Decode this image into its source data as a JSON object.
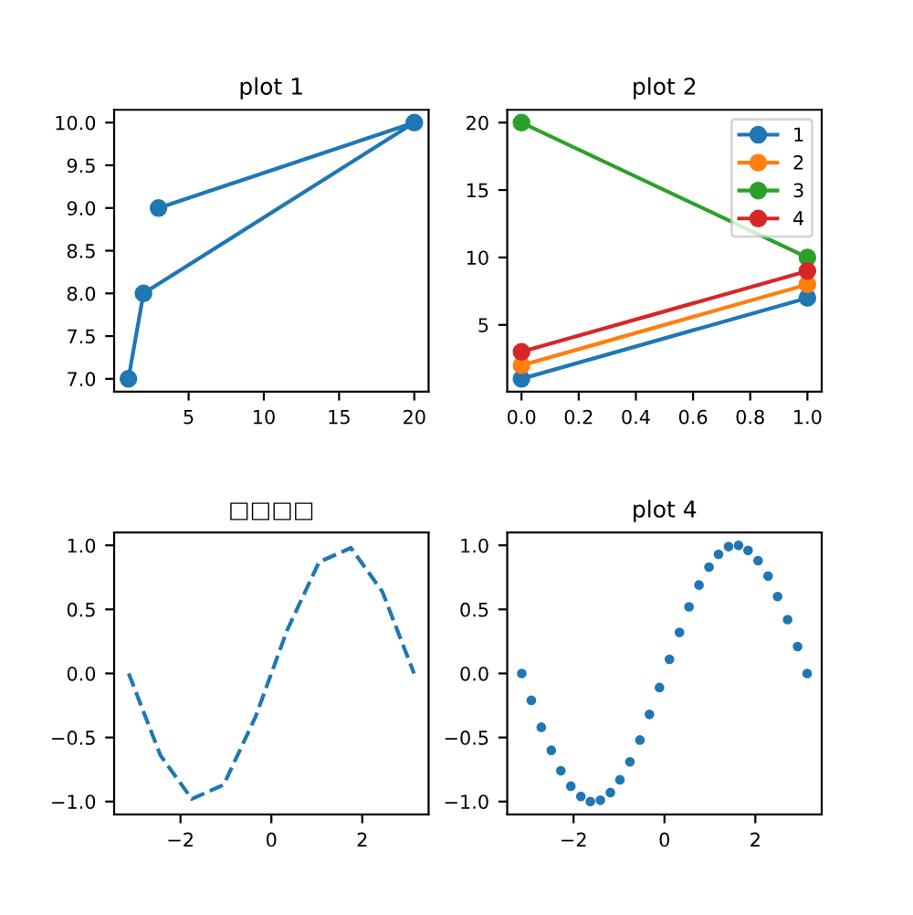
{
  "chart_data": [
    {
      "type": "line",
      "title": "plot 1",
      "x": [
        1,
        2,
        20,
        3
      ],
      "series": [
        {
          "color": "#1f77b4",
          "values": [
            7,
            8,
            10,
            9
          ]
        }
      ],
      "marker": "circle",
      "line_style": "solid",
      "xlim": [
        0.05,
        20.95
      ],
      "xticks": [
        5,
        10,
        15,
        20
      ],
      "ylim": [
        6.85,
        10.15
      ],
      "yticks": [
        {
          "value": 7,
          "label": "7.0"
        },
        7.5,
        {
          "value": 8,
          "label": "8.0"
        },
        8.5,
        {
          "value": 9,
          "label": "9.0"
        },
        9.5,
        {
          "value": 10,
          "label": "10.0"
        }
      ]
    },
    {
      "type": "line",
      "title": "plot 2",
      "x": [
        0,
        1
      ],
      "series": [
        {
          "name": "1",
          "color": "#1f77b4",
          "values": [
            1,
            7
          ]
        },
        {
          "name": "2",
          "color": "#ff7f0e",
          "values": [
            2,
            8
          ]
        },
        {
          "name": "3",
          "color": "#2ca02c",
          "values": [
            20,
            10
          ]
        },
        {
          "name": "4",
          "color": "#d62728",
          "values": [
            3,
            9
          ]
        }
      ],
      "marker": "circle",
      "line_style": "solid",
      "legend": "top right",
      "xlim": [
        -0.05,
        1.05
      ],
      "xticks": [
        {
          "value": 0,
          "label": "0.0"
        },
        0.2,
        0.4,
        0.6,
        0.8,
        {
          "value": 1,
          "label": "1.0"
        }
      ],
      "ylim": [
        0.05,
        20.95
      ],
      "yticks": [
        5,
        10,
        15,
        20
      ]
    },
    {
      "type": "line",
      "title": "□□□□",
      "x": [
        -3.14,
        -2.44,
        -1.75,
        -1.05,
        -0.35,
        0.35,
        1.05,
        1.75,
        2.44,
        3.14
      ],
      "series": [
        {
          "color": "#1f77b4",
          "values": [
            0.0,
            -0.64,
            -0.98,
            -0.87,
            -0.34,
            0.34,
            0.87,
            0.98,
            0.64,
            0.0
          ]
        }
      ],
      "line_style": "dashed",
      "xlim": [
        -3.46,
        3.46
      ],
      "xticks": [
        {
          "value": -2,
          "label": "−2"
        },
        0,
        2
      ],
      "ylim": [
        -1.1,
        1.1
      ],
      "yticks": [
        {
          "value": -1,
          "label": "−1.0"
        },
        {
          "value": -0.5,
          "label": "−0.5"
        },
        {
          "value": 0,
          "label": "0.0"
        },
        0.5,
        {
          "value": 1,
          "label": "1.0"
        }
      ]
    },
    {
      "type": "scatter",
      "title": "plot 4",
      "x": [
        -3.14,
        -2.93,
        -2.71,
        -2.49,
        -2.28,
        -2.06,
        -1.84,
        -1.63,
        -1.41,
        -1.19,
        -0.98,
        -0.76,
        -0.54,
        -0.33,
        -0.11,
        0.11,
        0.33,
        0.54,
        0.76,
        0.98,
        1.19,
        1.41,
        1.63,
        1.84,
        2.06,
        2.28,
        2.49,
        2.71,
        2.93,
        3.14
      ],
      "series": [
        {
          "color": "#1f77b4",
          "values": [
            0.0,
            -0.21,
            -0.42,
            -0.6,
            -0.76,
            -0.88,
            -0.96,
            -1.0,
            -0.99,
            -0.93,
            -0.83,
            -0.69,
            -0.52,
            -0.32,
            -0.11,
            0.11,
            0.32,
            0.52,
            0.69,
            0.83,
            0.93,
            0.99,
            1.0,
            0.96,
            0.88,
            0.76,
            0.6,
            0.42,
            0.21,
            0.0
          ]
        }
      ],
      "marker": "circle",
      "xlim": [
        -3.46,
        3.46
      ],
      "xticks": [
        {
          "value": -2,
          "label": "−2"
        },
        0,
        2
      ],
      "ylim": [
        -1.1,
        1.1
      ],
      "yticks": [
        {
          "value": -1,
          "label": "−1.0"
        },
        {
          "value": -0.5,
          "label": "−0.5"
        },
        {
          "value": 0,
          "label": "0.0"
        },
        0.5,
        {
          "value": 1,
          "label": "1.0"
        }
      ]
    }
  ]
}
